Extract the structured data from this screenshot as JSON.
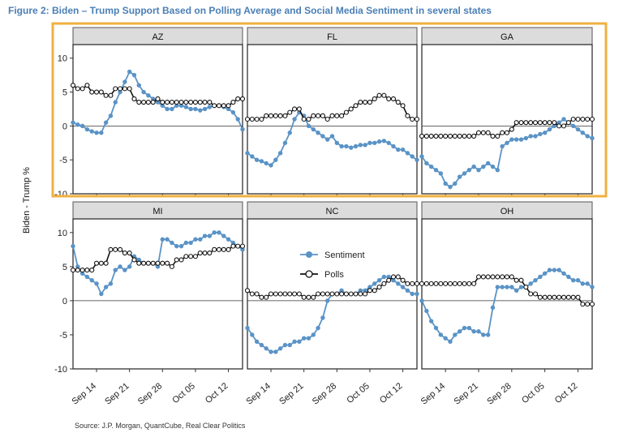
{
  "figure": {
    "title": "Figure 2: Biden – Trump Support Based on Polling Average and Social Media Sentiment in several states",
    "source": "Source: J.P. Morgan, QuantCube, Real Clear Politics",
    "ylabel": "Biden - Trump %"
  },
  "colors": {
    "sentiment": "#5a93c6",
    "polls": "#111111",
    "highlight": "#f0b040",
    "panel_header": "#dcdcdc"
  },
  "chart_data": {
    "type": "line",
    "x_ticks": [
      "Sep 14",
      "Sep 21",
      "Sep 28",
      "Oct 05",
      "Oct 12"
    ],
    "x_tick_day": [
      14,
      21,
      28,
      35,
      42
    ],
    "x_range_day": [
      9,
      45
    ],
    "ylim": [
      -10,
      12
    ],
    "y_ticks": [
      10,
      5,
      0,
      -5,
      -10
    ],
    "y_tick_labels": [
      "10",
      "5",
      "0",
      "-5",
      "-10"
    ],
    "zero_line": true,
    "legend": {
      "placement": "inside NC panel",
      "entries": [
        "Sentiment",
        "Polls"
      ]
    },
    "highlight_row": "top",
    "panels": [
      {
        "state": "AZ",
        "series": [
          {
            "name": "Sentiment",
            "x": [
              9,
              10,
              11,
              12,
              13,
              14,
              15,
              16,
              17,
              18,
              19,
              20,
              21,
              22,
              23,
              24,
              25,
              26,
              27,
              28,
              29,
              30,
              31,
              32,
              33,
              34,
              35,
              36,
              37,
              38,
              39,
              40,
              41,
              42,
              43,
              44,
              45
            ],
            "values": [
              0.5,
              0.2,
              0,
              -0.5,
              -0.8,
              -1,
              -1,
              0.5,
              1.5,
              3.5,
              5,
              6.5,
              8,
              7.5,
              6,
              5,
              4.5,
              4,
              3.5,
              3,
              2.5,
              2.5,
              3,
              3,
              2.8,
              2.5,
              2.5,
              2.3,
              2.5,
              2.8,
              3,
              3,
              2.8,
              2.5,
              2,
              1,
              -0.5
            ]
          },
          {
            "name": "Polls",
            "x": [
              9,
              10,
              11,
              12,
              13,
              14,
              15,
              16,
              17,
              18,
              19,
              20,
              21,
              22,
              23,
              24,
              25,
              26,
              27,
              28,
              29,
              30,
              31,
              32,
              33,
              34,
              35,
              36,
              37,
              38,
              39,
              40,
              41,
              42,
              43,
              44,
              45
            ],
            "values": [
              6,
              5.5,
              5.5,
              6,
              5,
              5,
              5,
              4.5,
              4.5,
              5.5,
              5.5,
              5.5,
              5.5,
              4,
              3.5,
              3.5,
              3.5,
              3.5,
              4,
              3.5,
              3.5,
              3.5,
              3.5,
              3.5,
              3.5,
              3.5,
              3.5,
              3.5,
              3.5,
              3.5,
              3,
              3,
              3,
              3,
              3.5,
              4,
              4
            ]
          }
        ]
      },
      {
        "state": "FL",
        "series": [
          {
            "name": "Sentiment",
            "x": [
              9,
              10,
              11,
              12,
              13,
              14,
              15,
              16,
              17,
              18,
              19,
              20,
              21,
              22,
              23,
              24,
              25,
              26,
              27,
              28,
              29,
              30,
              31,
              32,
              33,
              34,
              35,
              36,
              37,
              38,
              39,
              40,
              41,
              42,
              43,
              44,
              45
            ],
            "values": [
              -4,
              -4.5,
              -5,
              -5.2,
              -5.5,
              -5.8,
              -5,
              -4,
              -2.5,
              -1,
              1,
              2,
              1.5,
              0,
              -0.5,
              -1,
              -1.5,
              -2,
              -1.5,
              -2.5,
              -3,
              -3,
              -3.2,
              -3,
              -2.8,
              -2.8,
              -2.5,
              -2.5,
              -2.3,
              -2.2,
              -2.5,
              -3,
              -3.5,
              -3.5,
              -4,
              -4.5,
              -5
            ]
          },
          {
            "name": "Polls",
            "x": [
              9,
              10,
              11,
              12,
              13,
              14,
              15,
              16,
              17,
              18,
              19,
              20,
              21,
              22,
              23,
              24,
              25,
              26,
              27,
              28,
              29,
              30,
              31,
              32,
              33,
              34,
              35,
              36,
              37,
              38,
              39,
              40,
              41,
              42,
              43,
              44,
              45
            ],
            "values": [
              1,
              1,
              1,
              1,
              1.5,
              1.5,
              1.5,
              1.5,
              1.5,
              2,
              2.5,
              2.5,
              1,
              1,
              1.5,
              1.5,
              1.5,
              1,
              1.5,
              1.5,
              1.5,
              2,
              2.5,
              3,
              3.5,
              3.5,
              3.5,
              4,
              4.5,
              4.5,
              4,
              4,
              3.5,
              3,
              1.5,
              1,
              1
            ]
          }
        ]
      },
      {
        "state": "GA",
        "series": [
          {
            "name": "Sentiment",
            "x": [
              9,
              10,
              11,
              12,
              13,
              14,
              15,
              16,
              17,
              18,
              19,
              20,
              21,
              22,
              23,
              24,
              25,
              26,
              27,
              28,
              29,
              30,
              31,
              32,
              33,
              34,
              35,
              36,
              37,
              38,
              39,
              40,
              41,
              42,
              43,
              44,
              45
            ],
            "values": [
              -4.5,
              -5.5,
              -6,
              -6.5,
              -7,
              -8.5,
              -9,
              -8.5,
              -7.5,
              -7,
              -6.5,
              -6,
              -6.5,
              -6,
              -5.5,
              -6,
              -6.5,
              -3,
              -2.5,
              -2,
              -2,
              -2,
              -1.8,
              -1.5,
              -1.5,
              -1.2,
              -1,
              -0.5,
              0,
              0.5,
              1,
              0.5,
              0,
              -0.5,
              -1,
              -1.5,
              -1.8
            ]
          },
          {
            "name": "Polls",
            "x": [
              9,
              10,
              11,
              12,
              13,
              14,
              15,
              16,
              17,
              18,
              19,
              20,
              21,
              22,
              23,
              24,
              25,
              26,
              27,
              28,
              29,
              30,
              31,
              32,
              33,
              34,
              35,
              36,
              37,
              38,
              39,
              40,
              41,
              42,
              43,
              44,
              45
            ],
            "values": [
              -1.5,
              -1.5,
              -1.5,
              -1.5,
              -1.5,
              -1.5,
              -1.5,
              -1.5,
              -1.5,
              -1.5,
              -1.5,
              -1.5,
              -1,
              -1,
              -1,
              -1.5,
              -1.5,
              -1,
              -1,
              -0.5,
              0.5,
              0.5,
              0.5,
              0.5,
              0.5,
              0.5,
              0.5,
              0.5,
              0.5,
              0,
              0,
              0.5,
              1,
              1,
              1,
              1,
              1
            ]
          }
        ]
      },
      {
        "state": "MI",
        "series": [
          {
            "name": "Sentiment",
            "x": [
              9,
              10,
              11,
              12,
              13,
              14,
              15,
              16,
              17,
              18,
              19,
              20,
              21,
              22,
              23,
              24,
              25,
              26,
              27,
              28,
              29,
              30,
              31,
              32,
              33,
              34,
              35,
              36,
              37,
              38,
              39,
              40,
              41,
              42,
              43,
              44,
              45
            ],
            "values": [
              8,
              5,
              4,
              3.5,
              3,
              2.5,
              1,
              2,
              2.5,
              4.5,
              5,
              4.5,
              5,
              6.5,
              6,
              5.5,
              5.5,
              5.5,
              5,
              9,
              9,
              8.5,
              8,
              8,
              8.5,
              8.5,
              9,
              9,
              9.5,
              9.5,
              10,
              10,
              9.5,
              9,
              8.5,
              8,
              7.5
            ]
          },
          {
            "name": "Polls",
            "x": [
              9,
              10,
              11,
              12,
              13,
              14,
              15,
              16,
              17,
              18,
              19,
              20,
              21,
              22,
              23,
              24,
              25,
              26,
              27,
              28,
              29,
              30,
              31,
              32,
              33,
              34,
              35,
              36,
              37,
              38,
              39,
              40,
              41,
              42,
              43,
              44,
              45
            ],
            "values": [
              4.5,
              4.5,
              4.5,
              4.5,
              4.5,
              5.5,
              5.5,
              5.5,
              7.5,
              7.5,
              7.5,
              7,
              7,
              6,
              5.5,
              5.5,
              5.5,
              5.5,
              5.5,
              5.5,
              5.5,
              5,
              6,
              6,
              6.5,
              6.5,
              6.5,
              7,
              7,
              7,
              7.5,
              7.5,
              7.5,
              7.5,
              8,
              8,
              8
            ]
          }
        ]
      },
      {
        "state": "NC",
        "series": [
          {
            "name": "Sentiment",
            "x": [
              9,
              10,
              11,
              12,
              13,
              14,
              15,
              16,
              17,
              18,
              19,
              20,
              21,
              22,
              23,
              24,
              25,
              26,
              27,
              28,
              29,
              30,
              31,
              32,
              33,
              34,
              35,
              36,
              37,
              38,
              39,
              40,
              41,
              42,
              43,
              44,
              45
            ],
            "values": [
              -4,
              -5,
              -6,
              -6.5,
              -7,
              -7.5,
              -7.5,
              -7,
              -6.5,
              -6.5,
              -6,
              -6,
              -5.5,
              -5.5,
              -5,
              -4,
              -2.5,
              0,
              1,
              1,
              1.5,
              1,
              1,
              1,
              1.5,
              1.5,
              2,
              2.5,
              3,
              3.5,
              3.5,
              3,
              2.5,
              2,
              1.5,
              1,
              1
            ]
          },
          {
            "name": "Polls",
            "x": [
              9,
              10,
              11,
              12,
              13,
              14,
              15,
              16,
              17,
              18,
              19,
              20,
              21,
              22,
              23,
              24,
              25,
              26,
              27,
              28,
              29,
              30,
              31,
              32,
              33,
              34,
              35,
              36,
              37,
              38,
              39,
              40,
              41,
              42,
              43,
              44,
              45
            ],
            "values": [
              1.5,
              1,
              1,
              0.5,
              0.5,
              1,
              1,
              1,
              1,
              1,
              1,
              1,
              0.5,
              0.5,
              0.5,
              1,
              1,
              1,
              1,
              1,
              1,
              1,
              1,
              1,
              1,
              1,
              1.5,
              1.5,
              2,
              2.5,
              3,
              3.5,
              3.5,
              3,
              2.5,
              2.5,
              2.5
            ]
          }
        ]
      },
      {
        "state": "OH",
        "series": [
          {
            "name": "Sentiment",
            "x": [
              9,
              10,
              11,
              12,
              13,
              14,
              15,
              16,
              17,
              18,
              19,
              20,
              21,
              22,
              23,
              24,
              25,
              26,
              27,
              28,
              29,
              30,
              31,
              32,
              33,
              34,
              35,
              36,
              37,
              38,
              39,
              40,
              41,
              42,
              43,
              44,
              45
            ],
            "values": [
              0,
              -1.5,
              -3,
              -4,
              -5,
              -5.5,
              -6,
              -5,
              -4.5,
              -4,
              -4,
              -4.5,
              -4.5,
              -5,
              -5,
              -1,
              2,
              2,
              2,
              2,
              1.5,
              2,
              2,
              2.5,
              3,
              3.5,
              4,
              4.5,
              4.5,
              4.5,
              4,
              3.5,
              3,
              3,
              2.5,
              2.5,
              2
            ]
          },
          {
            "name": "Polls",
            "x": [
              9,
              10,
              11,
              12,
              13,
              14,
              15,
              16,
              17,
              18,
              19,
              20,
              21,
              22,
              23,
              24,
              25,
              26,
              27,
              28,
              29,
              30,
              31,
              32,
              33,
              34,
              35,
              36,
              37,
              38,
              39,
              40,
              41,
              42,
              43,
              44,
              45
            ],
            "values": [
              2.5,
              2.5,
              2.5,
              2.5,
              2.5,
              2.5,
              2.5,
              2.5,
              2.5,
              2.5,
              2.5,
              2.5,
              3.5,
              3.5,
              3.5,
              3.5,
              3.5,
              3.5,
              3.5,
              3.5,
              3,
              3,
              2,
              1,
              1,
              0.5,
              0.5,
              0.5,
              0.5,
              0.5,
              0.5,
              0.5,
              0.5,
              0.5,
              -0.5,
              -0.5,
              -0.5
            ]
          }
        ]
      }
    ]
  }
}
